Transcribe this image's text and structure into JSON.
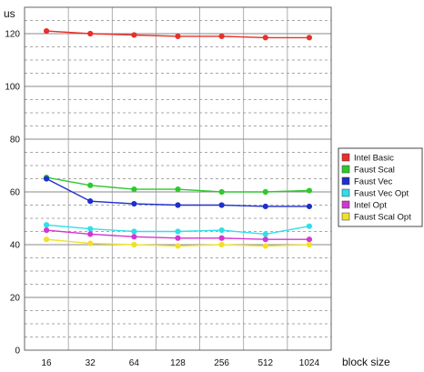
{
  "chart_data": {
    "type": "line",
    "title": "",
    "xlabel": "block size",
    "ylabel": "us",
    "categories": [
      "16",
      "32",
      "64",
      "128",
      "256",
      "512",
      "1024"
    ],
    "ylim": [
      0,
      130
    ],
    "yticks": [
      0,
      20,
      40,
      60,
      80,
      100,
      120
    ],
    "grid": true,
    "legend_position": "right",
    "series": [
      {
        "name": "Intel Basic",
        "color": "#e8302a",
        "values": [
          121,
          120,
          119.5,
          119,
          119,
          118.5,
          118.5
        ]
      },
      {
        "name": "Faust Scal",
        "color": "#2fc82f",
        "values": [
          65.5,
          62.5,
          61,
          61,
          60,
          60,
          60.5
        ]
      },
      {
        "name": "Faust Vec",
        "color": "#1f2fcc",
        "values": [
          65,
          56.5,
          55.5,
          55,
          55,
          54.5,
          54.5
        ]
      },
      {
        "name": "Faust Vec Opt",
        "color": "#2fe0e8",
        "values": [
          47.5,
          46,
          45,
          45,
          45.5,
          44,
          47
        ]
      },
      {
        "name": "Intel Opt",
        "color": "#d436d4",
        "values": [
          45.5,
          44,
          43,
          42.5,
          42.5,
          42,
          42
        ]
      },
      {
        "name": "Faust Scal Opt",
        "color": "#f0e02a",
        "values": [
          42,
          40.5,
          40,
          39.5,
          40,
          39.5,
          40
        ]
      }
    ]
  }
}
